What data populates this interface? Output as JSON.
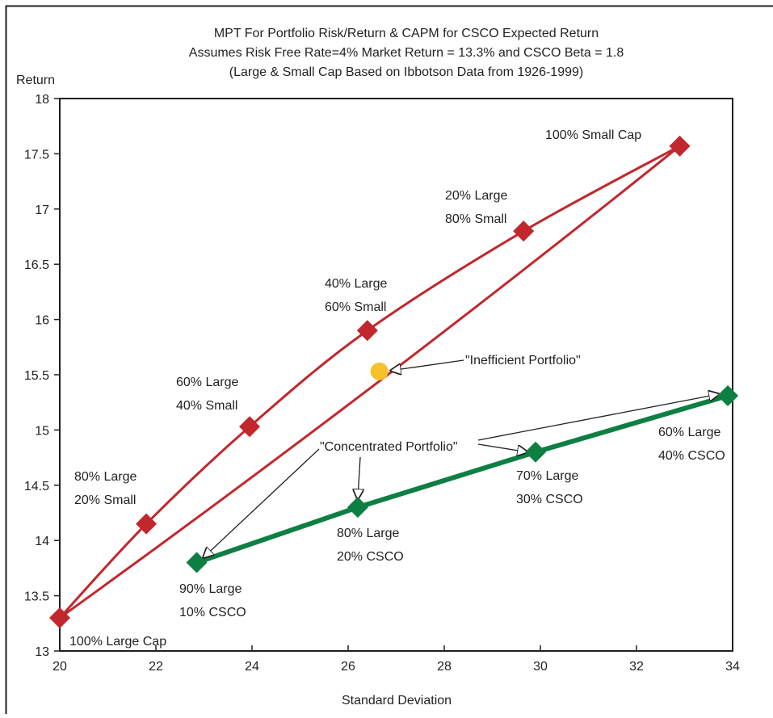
{
  "chart_data": {
    "type": "scatter",
    "title_lines": [
      "MPT For Portfolio Risk/Return & CAPM for CSCO Expected Return",
      "Assumes Risk Free Rate=4% Market Return = 13.3% and CSCO Beta = 1.8",
      "(Large & Small Cap Based on Ibbotson Data from 1926-1999)"
    ],
    "xlabel": "Standard Deviation",
    "ylabel": "Return",
    "xlim": [
      20,
      34
    ],
    "ylim": [
      13,
      18
    ],
    "x_ticks": [
      "20",
      "22",
      "24",
      "26",
      "28",
      "30",
      "32",
      "34"
    ],
    "y_ticks": [
      "13",
      "13.5",
      "14",
      "14.5",
      "15",
      "15.5",
      "16",
      "16.5",
      "17",
      "17.5",
      "18"
    ],
    "grid": false,
    "legend": "none",
    "series": [
      {
        "marker": "diamond",
        "color": "#c1272d",
        "line": "curve",
        "points": [
          {
            "x": 20.0,
            "y": 13.3,
            "label": [
              "100% Large Cap"
            ]
          },
          {
            "x": 21.8,
            "y": 14.15,
            "label": [
              "80% Large",
              "20% Small"
            ]
          },
          {
            "x": 23.95,
            "y": 15.03,
            "label": [
              "60% Large",
              "40% Small"
            ]
          },
          {
            "x": 26.4,
            "y": 15.9,
            "label": [
              "40% Large",
              "60% Small"
            ]
          },
          {
            "x": 29.65,
            "y": 16.8,
            "label": [
              "20% Large",
              "80% Small"
            ]
          },
          {
            "x": 32.9,
            "y": 17.57,
            "label": [
              "100% Small Cap"
            ]
          }
        ]
      },
      {
        "marker": "diamond",
        "color": "#0e7f43",
        "line": "straight",
        "points": [
          {
            "x": 22.85,
            "y": 13.8,
            "label": [
              "90% Large",
              "10% CSCO"
            ]
          },
          {
            "x": 26.2,
            "y": 14.3,
            "label": [
              "80% Large",
              "20% CSCO"
            ]
          },
          {
            "x": 29.9,
            "y": 14.8,
            "label": [
              "70% Large",
              "30% CSCO"
            ]
          },
          {
            "x": 33.9,
            "y": 15.31,
            "label": [
              "60% Large",
              "40% CSCO"
            ]
          }
        ]
      }
    ],
    "chord": {
      "from": [
        20.0,
        13.3
      ],
      "to": [
        32.9,
        17.57
      ],
      "color": "#c1272d"
    },
    "special_points": [
      {
        "x": 26.65,
        "y": 15.53,
        "marker": "circle",
        "color": "#f7c12e"
      }
    ],
    "annotations": [
      {
        "text": "\"Inefficient Portfolio\""
      },
      {
        "text": "\"Concentrated Portfolio\""
      }
    ]
  }
}
